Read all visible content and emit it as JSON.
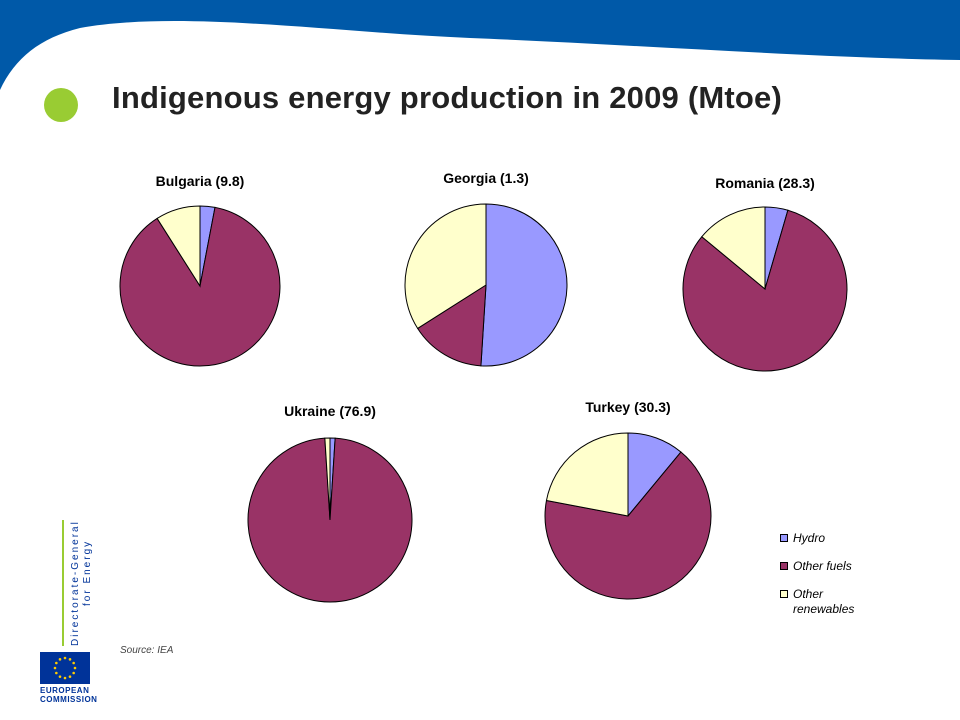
{
  "title": "Indigenous energy production in 2009 (Mtoe)",
  "source": "Source: IEA",
  "logo": {
    "line1": "Directorate-General",
    "line2": "for Energy",
    "eu_line1": "EUROPEAN",
    "eu_line2": "COMMISSION"
  },
  "colors": {
    "header": "#0059a8",
    "accent": "#99cc33",
    "hydro": "#9999ff",
    "other_fuels": "#993366",
    "other_renewables": "#ffffcc"
  },
  "legend": [
    {
      "label": "Hydro",
      "color": "#9999ff"
    },
    {
      "label": "Other fuels",
      "color": "#993366"
    },
    {
      "label": "Other renewables",
      "color": "#ffffcc"
    }
  ],
  "chart_data": [
    {
      "type": "pie",
      "title": "Bulgaria (9.8)",
      "categories": [
        "Hydro",
        "Other fuels",
        "Other renewables"
      ],
      "values": [
        3,
        88,
        9
      ]
    },
    {
      "type": "pie",
      "title": "Georgia (1.3)",
      "categories": [
        "Hydro",
        "Other fuels",
        "Other renewables"
      ],
      "values": [
        51,
        15,
        34
      ]
    },
    {
      "type": "pie",
      "title": "Romania (28.3)",
      "categories": [
        "Hydro",
        "Other fuels",
        "Other renewables"
      ],
      "values": [
        4.5,
        81.5,
        14
      ]
    },
    {
      "type": "pie",
      "title": "Ukraine (76.9)",
      "categories": [
        "Hydro",
        "Other fuels",
        "Other renewables"
      ],
      "values": [
        1,
        98,
        1
      ]
    },
    {
      "type": "pie",
      "title": "Turkey (30.3)",
      "categories": [
        "Hydro",
        "Other fuels",
        "Other renewables"
      ],
      "values": [
        11,
        67,
        22
      ]
    }
  ]
}
